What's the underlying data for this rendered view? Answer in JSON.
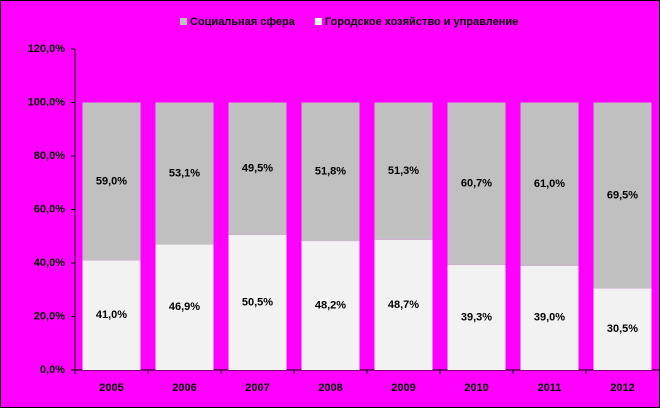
{
  "chart_data": {
    "type": "stacked_bar",
    "categories": [
      "2005",
      "2006",
      "2007",
      "2008",
      "2009",
      "2010",
      "2011",
      "2012"
    ],
    "series": [
      {
        "name": "Социальная сфера",
        "color": "#c0c0c0",
        "values": [
          59.0,
          53.1,
          49.5,
          51.8,
          51.3,
          60.7,
          61.0,
          69.5
        ],
        "value_labels": [
          "59,0%",
          "53,1%",
          "49,5%",
          "51,8%",
          "51,3%",
          "60,7%",
          "61,0%",
          "69,5%"
        ]
      },
      {
        "name": "Городское хозяйство и управление",
        "color": "#f2f2f2",
        "values": [
          41.0,
          46.9,
          50.5,
          48.2,
          48.7,
          39.3,
          39.0,
          30.5
        ],
        "value_labels": [
          "41,0%",
          "46,9%",
          "50,5%",
          "48,2%",
          "48,7%",
          "39,3%",
          "39,0%",
          "30,5%"
        ]
      }
    ],
    "ylim": [
      0,
      120
    ],
    "yticks": [
      {
        "value": 0,
        "label": "0,0%"
      },
      {
        "value": 20,
        "label": "20,0%"
      },
      {
        "value": 40,
        "label": "40,0%"
      },
      {
        "value": 60,
        "label": "60,0%"
      },
      {
        "value": 80,
        "label": "80,0%"
      },
      {
        "value": 100,
        "label": "100,0%"
      },
      {
        "value": 120,
        "label": "120,0%"
      }
    ],
    "background": "#ff00ff"
  }
}
